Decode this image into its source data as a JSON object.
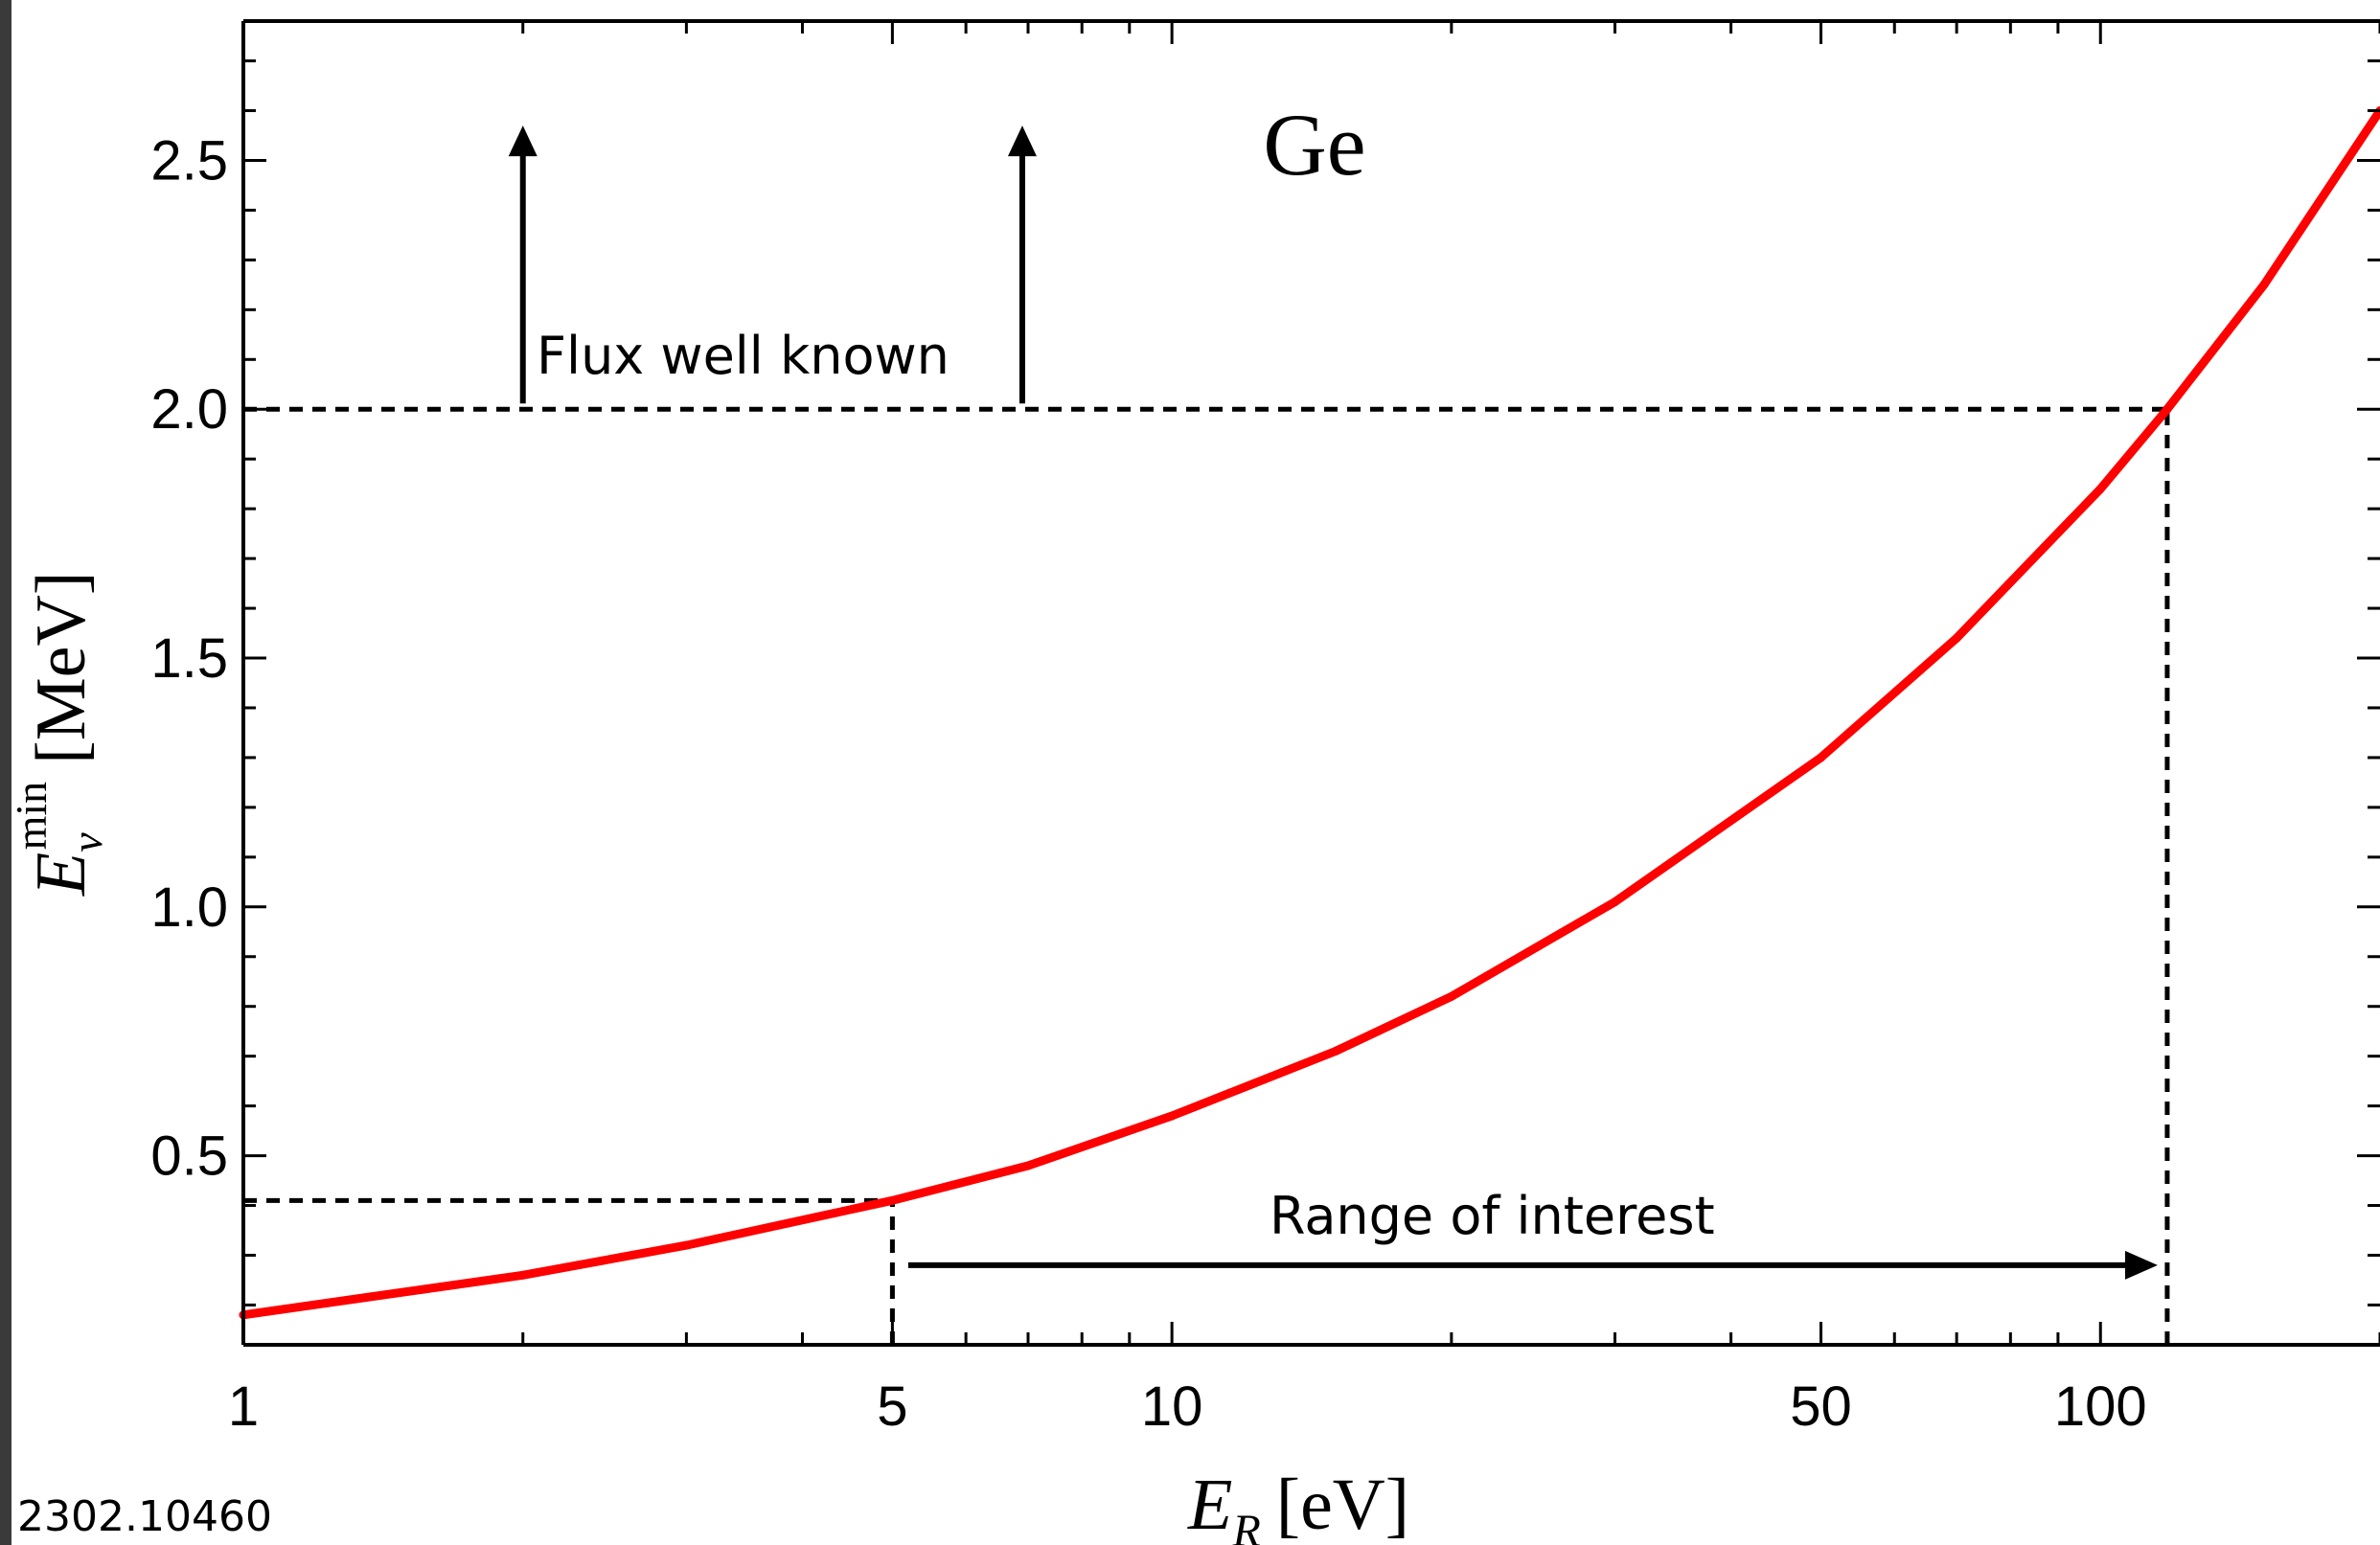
{
  "chart_data": {
    "type": "line",
    "title": "Ge",
    "xlabel_main": "E",
    "xlabel_sub": "R",
    "xlabel_unit": "[eV]",
    "ylabel_main": "E",
    "ylabel_sub": "ν",
    "ylabel_sup": "min",
    "ylabel_unit": "[MeV]",
    "xscale": "log",
    "xlim": [
      1,
      200
    ],
    "ylim": [
      0.12,
      2.78
    ],
    "x_ticks": [
      1,
      5,
      10,
      50,
      100
    ],
    "x_tick_labels": [
      "1",
      "5",
      "10",
      "50",
      "100"
    ],
    "y_ticks": [
      0.5,
      1.0,
      1.5,
      2.0,
      2.5
    ],
    "y_tick_labels": [
      "0.5",
      "1.0",
      "1.5",
      "2.0",
      "2.5"
    ],
    "grid": false,
    "series": [
      {
        "color": "#ff0000",
        "x": [
          1,
          2,
          3,
          5,
          7,
          10,
          15,
          20,
          30,
          50,
          70,
          100,
          118,
          150,
          200
        ],
        "y": [
          0.18,
          0.26,
          0.32,
          0.41,
          0.48,
          0.58,
          0.71,
          0.82,
          1.01,
          1.3,
          1.54,
          1.84,
          2.0,
          2.25,
          2.6
        ]
      }
    ],
    "reference_lines": [
      {
        "kind": "horizontal",
        "y": 2.0,
        "x_from": 1,
        "x_to": 118,
        "style": "dashed"
      },
      {
        "kind": "vertical",
        "x": 118,
        "y_from": 0.12,
        "y_to": 2.0,
        "style": "dashed"
      },
      {
        "kind": "horizontal",
        "y": 0.41,
        "x_from": 1,
        "x_to": 5,
        "style": "dashed"
      },
      {
        "kind": "vertical",
        "x": 5,
        "y_from": 0.12,
        "y_to": 0.41,
        "style": "dashed"
      }
    ],
    "annotations": {
      "flux_label": "Flux well known",
      "range_label": "Range of interest",
      "flux_arrow_x": [
        2,
        6.9
      ],
      "flux_arrow_y": [
        2.0,
        2.57
      ],
      "range_arrow_x": [
        5.2,
        118
      ],
      "range_arrow_y": 0.28
    }
  },
  "footer": {
    "reference": "2302.10460"
  },
  "colors": {
    "background": "#3a3a3a",
    "panel": "#ffffff",
    "curve": "#ff0000",
    "ink": "#000000"
  }
}
